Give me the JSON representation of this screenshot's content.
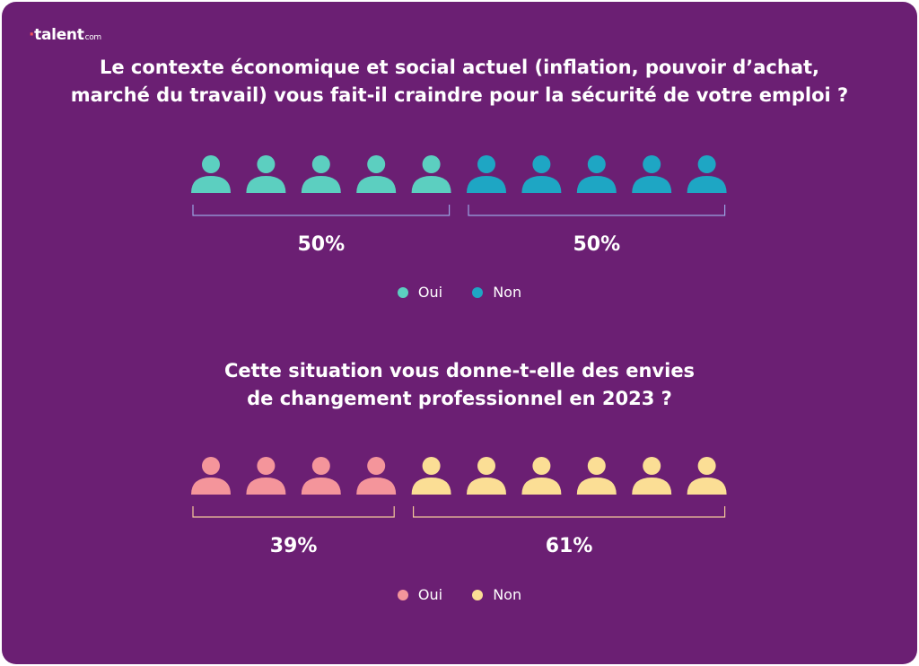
{
  "brand": {
    "name": "talent",
    "suffix": "com"
  },
  "chart_data": [
    {
      "type": "pictogram",
      "title_lines": [
        "Le contexte économique et social actuel (inflation, pouvoir d’achat,",
        "marché du travail) vous fait-il craindre pour la sécurité de votre emploi ?"
      ],
      "categories": [
        "Oui",
        "Non"
      ],
      "values": [
        50,
        50
      ],
      "value_labels": [
        "50%",
        "50%"
      ],
      "icon_counts": [
        5,
        5
      ],
      "icon_name": "person-icon",
      "colors": [
        "#5ccfc0",
        "#1ea6c4"
      ],
      "bracket_colors": [
        "#9aa3e3",
        "#9aa3e3"
      ],
      "legend": [
        {
          "label": "Oui",
          "color": "#5ccfc0"
        },
        {
          "label": "Non",
          "color": "#1ea6c4"
        }
      ]
    },
    {
      "type": "pictogram",
      "title_lines": [
        "Cette situation vous donne-t-elle des envies",
        "de changement professionnel en 2023 ?"
      ],
      "categories": [
        "Oui",
        "Non"
      ],
      "values": [
        39,
        61
      ],
      "value_labels": [
        "39%",
        "61%"
      ],
      "icon_counts": [
        4,
        6
      ],
      "icon_name": "person-icon",
      "colors": [
        "#f4959b",
        "#fbde95"
      ],
      "bracket_colors": [
        "#f4c79a",
        "#f4c79a"
      ],
      "legend": [
        {
          "label": "Oui",
          "color": "#f4959b"
        },
        {
          "label": "Non",
          "color": "#fbde95"
        }
      ]
    }
  ]
}
